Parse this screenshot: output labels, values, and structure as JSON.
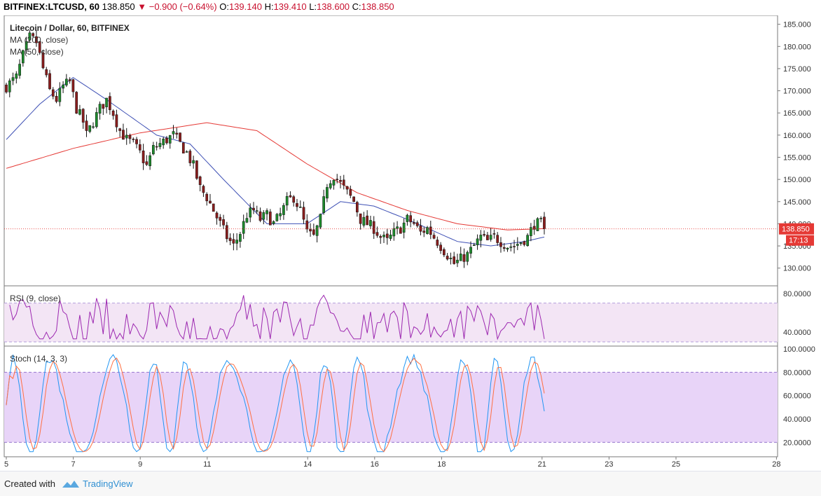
{
  "header": {
    "symbol": "BITFINEX:LTCUSD, 60",
    "last": "138.850",
    "change": "▼ −0.900 (−0.64%)",
    "o_label": "O:",
    "o": "139.140",
    "h_label": "H:",
    "h": "139.410",
    "l_label": "L:",
    "l": "138.600",
    "c_label": "C:",
    "c": "138.850"
  },
  "footer": {
    "created": "Created with",
    "brand": "TradingView"
  },
  "colors": {
    "up": "#26a69a",
    "up_fill": "#1d8b2c",
    "down": "#8a1d1d",
    "ma200": "#e53935",
    "ma50": "#3f51b5",
    "rsi": "#9c27b0",
    "stoch_k": "#2196f3",
    "stoch_d": "#ff7043",
    "price_badge": "#e53935"
  },
  "chart_data": [
    {
      "type": "candlestick",
      "title": "Litecoin / Dollar, 60, BITFINEX",
      "legend": [
        "MA (200, close)",
        "MA (50, close)"
      ],
      "ylim": [
        126,
        187
      ],
      "y_ticks": [
        "130.000",
        "135.000",
        "140.000",
        "145.000",
        "150.000",
        "155.000",
        "160.000",
        "165.000",
        "170.000",
        "175.000",
        "180.000",
        "185.000"
      ],
      "x_ticks": [
        "5",
        "7",
        "9",
        "11",
        "14",
        "16",
        "18",
        "21",
        "23",
        "25",
        "28"
      ],
      "last_price": "138.850",
      "countdown": "17:13",
      "price_keys": [
        [
          0,
          171
        ],
        [
          3,
          173
        ],
        [
          5,
          178
        ],
        [
          7,
          182
        ],
        [
          9,
          181
        ],
        [
          11,
          175
        ],
        [
          13,
          170
        ],
        [
          15,
          168
        ],
        [
          17,
          171
        ],
        [
          19,
          172
        ],
        [
          21,
          166
        ],
        [
          23,
          163
        ],
        [
          24,
          160
        ],
        [
          26,
          163
        ],
        [
          28,
          166
        ],
        [
          30,
          168
        ],
        [
          32,
          165
        ],
        [
          34,
          161
        ],
        [
          36,
          159
        ],
        [
          38,
          158
        ],
        [
          40,
          156
        ],
        [
          42,
          153
        ],
        [
          44,
          157
        ],
        [
          46,
          158
        ],
        [
          48,
          159
        ],
        [
          50,
          160
        ],
        [
          52,
          158
        ],
        [
          54,
          156
        ],
        [
          56,
          153
        ],
        [
          58,
          148
        ],
        [
          60,
          146
        ],
        [
          62,
          143
        ],
        [
          64,
          140
        ],
        [
          66,
          137
        ],
        [
          68,
          135
        ],
        [
          70,
          138
        ],
        [
          72,
          142
        ],
        [
          74,
          143
        ],
        [
          76,
          141
        ],
        [
          78,
          142
        ],
        [
          80,
          140
        ],
        [
          82,
          142
        ],
        [
          84,
          145
        ],
        [
          86,
          146
        ],
        [
          88,
          143
        ],
        [
          90,
          138
        ],
        [
          92,
          137
        ],
        [
          94,
          141
        ],
        [
          96,
          149
        ],
        [
          98,
          151
        ],
        [
          100,
          149
        ],
        [
          102,
          147
        ],
        [
          104,
          145
        ],
        [
          106,
          141
        ],
        [
          108,
          140
        ],
        [
          110,
          139
        ],
        [
          112,
          137
        ],
        [
          114,
          136
        ],
        [
          116,
          138
        ],
        [
          118,
          139
        ],
        [
          120,
          141
        ],
        [
          122,
          140
        ],
        [
          124,
          138
        ],
        [
          126,
          139
        ],
        [
          128,
          137
        ],
        [
          130,
          135
        ],
        [
          132,
          133
        ],
        [
          134,
          131
        ],
        [
          136,
          132
        ],
        [
          138,
          133
        ],
        [
          140,
          135
        ],
        [
          142,
          137
        ],
        [
          144,
          136
        ],
        [
          146,
          137
        ],
        [
          148,
          136
        ],
        [
          150,
          135
        ],
        [
          152,
          135
        ],
        [
          154,
          136
        ],
        [
          156,
          137
        ],
        [
          158,
          140
        ],
        [
          160,
          140
        ],
        [
          161,
          138.85
        ]
      ],
      "ma200_keys": [
        [
          0,
          152.5
        ],
        [
          20,
          157
        ],
        [
          40,
          160.5
        ],
        [
          60,
          162.8
        ],
        [
          75,
          161
        ],
        [
          90,
          153.5
        ],
        [
          105,
          147
        ],
        [
          120,
          143
        ],
        [
          135,
          140
        ],
        [
          150,
          138.6
        ],
        [
          161,
          138.9
        ]
      ],
      "ma50_keys": [
        [
          0,
          159
        ],
        [
          10,
          167
        ],
        [
          20,
          173
        ],
        [
          30,
          168
        ],
        [
          45,
          160
        ],
        [
          55,
          158
        ],
        [
          65,
          150
        ],
        [
          78,
          140
        ],
        [
          90,
          140
        ],
        [
          100,
          145
        ],
        [
          110,
          144
        ],
        [
          120,
          141
        ],
        [
          135,
          136
        ],
        [
          145,
          135
        ],
        [
          155,
          136
        ],
        [
          161,
          137
        ]
      ]
    },
    {
      "type": "line",
      "title": "RSI (9, close)",
      "ylim": [
        30,
        82
      ],
      "y_ticks": [
        "40.0000",
        "80.0000"
      ],
      "band": [
        30,
        70
      ]
    },
    {
      "type": "line",
      "title": "Stoch (14, 3, 3)",
      "ylim": [
        10,
        100
      ],
      "y_ticks": [
        "20.0000",
        "40.0000",
        "60.0000",
        "80.0000",
        "100.0000"
      ],
      "band": [
        20,
        80
      ]
    }
  ]
}
